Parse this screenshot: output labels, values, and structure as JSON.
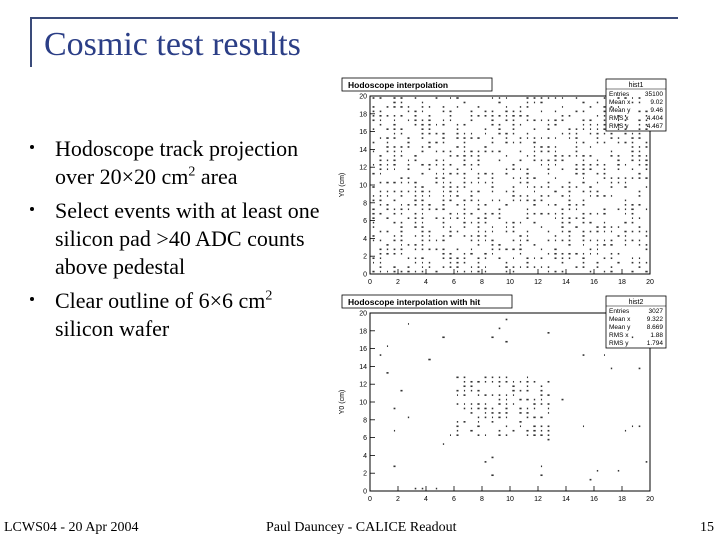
{
  "slide": {
    "title": "Cosmic test results",
    "bullets": [
      {
        "pre": "Hodoscope track projection over 20×20 cm",
        "sup": "2",
        "post": " area"
      },
      {
        "pre": "Select events with at least one silicon pad >40 ADC counts above pedestal",
        "sup": "",
        "post": ""
      },
      {
        "pre": "Clear outline of 6×6 cm",
        "sup": "2",
        "post": " silicon wafer"
      }
    ],
    "footer": {
      "left": "LCWS04 - 20 Apr 2004",
      "center": "Paul Dauncey - CALICE Readout",
      "page": "15"
    }
  },
  "chart_data": [
    {
      "type": "scatter",
      "title": "Hodoscope interpolation",
      "ylabel": "Y0 (cm)",
      "xlim": [
        0,
        20
      ],
      "ylim": [
        0,
        20
      ],
      "xticks": [
        "0",
        "2",
        "4",
        "6",
        "8",
        "10",
        "12",
        "14",
        "16",
        "18",
        "20"
      ],
      "yticks": [
        "0",
        "2",
        "4",
        "6",
        "8",
        "10",
        "12",
        "14",
        "16",
        "18",
        "20"
      ],
      "stats": {
        "name": "hist1",
        "rows": [
          [
            "Entries",
            "35100"
          ],
          [
            "Mean x",
            "9.02"
          ],
          [
            "Mean y",
            "9.46"
          ],
          [
            "RMS x",
            "4.404"
          ],
          [
            "RMS y",
            "4.467"
          ]
        ]
      },
      "mode": "uniform"
    },
    {
      "type": "scatter",
      "title": "Hodoscope interpolation with hit",
      "ylabel": "Y0 (cm)",
      "xlim": [
        0,
        20
      ],
      "ylim": [
        0,
        20
      ],
      "xticks": [
        "0",
        "2",
        "4",
        "6",
        "8",
        "10",
        "12",
        "14",
        "16",
        "18",
        "20"
      ],
      "yticks": [
        "0",
        "2",
        "4",
        "6",
        "8",
        "10",
        "12",
        "14",
        "16",
        "18",
        "20"
      ],
      "stats": {
        "name": "hist2",
        "rows": [
          [
            "Entries",
            "3027"
          ],
          [
            "Mean x",
            "9.322"
          ],
          [
            "Mean y",
            "8.669"
          ],
          [
            "RMS x",
            "1.88"
          ],
          [
            "RMS y",
            "1.794"
          ]
        ]
      },
      "mode": "concentrated",
      "concentration": {
        "x": [
          6,
          13
        ],
        "y": [
          6,
          13
        ]
      }
    }
  ]
}
